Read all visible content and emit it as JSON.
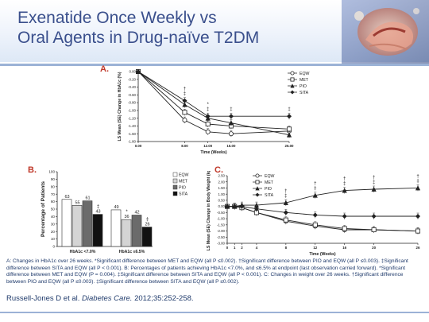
{
  "slide": {
    "title_line1": "Exenatide Once Weekly vs",
    "title_line2": "Oral Agents in Drug-naïve T2DM",
    "caption_a": "A: Changes in HbA1c over 26 weeks. *Significant difference between MET and EQW (all P ≤0.002). †Significant difference between PIO and EQW (all P ≤0.003). ‡Significant difference between SITA and EQW (all P < 0.001).",
    "caption_b": "B: Percentages of patients achieving HbA1c <7.0%, and ≤6.5% at endpoint (last observation carried forward). *Significant difference between MET and EQW (P = 0.004). ‡Significant difference between SITA and EQW (all P < 0.001).",
    "caption_c": "C: Changes in weight over 26 weeks. †Significant difference between PIO and EQW (all P ≤0.003). ‡Significant difference between SITA and EQW (all P ≤0.002).",
    "citation_authors": "Russell-Jones D et al.",
    "citation_journal": "Diabetes Care.",
    "citation_ref": "2012;35:252-258."
  },
  "colors": {
    "title": "#3a4f8c",
    "panel_label": "#c0392b",
    "text": "#1f3a6b"
  },
  "chart_data": [
    {
      "id": "A",
      "panel_label": "A.",
      "type": "line",
      "ylabel": "LS Mean (SE) Change in HbA1c (%)",
      "xlabel": "Time (Weeks)",
      "x": [
        0,
        8,
        12,
        16,
        26
      ],
      "x_ticks": [
        "0.00",
        "8.00",
        "12.00",
        "16.00",
        "26.00"
      ],
      "ylim": [
        -1.8,
        0
      ],
      "y_ticks": [
        "0.00",
        "-0.20",
        "-0.40",
        "-0.60",
        "-0.80",
        "-1.00",
        "-1.20",
        "-1.40",
        "-1.60",
        "-1.80"
      ],
      "legend": "right",
      "series": [
        {
          "name": "EQW",
          "values": [
            0,
            -1.25,
            -1.55,
            -1.6,
            -1.53
          ]
        },
        {
          "name": "MET",
          "values": [
            0,
            -1.05,
            -1.35,
            -1.4,
            -1.48
          ]
        },
        {
          "name": "PIO",
          "values": [
            0,
            -0.85,
            -1.2,
            -1.32,
            -1.63
          ]
        },
        {
          "name": "SITA",
          "values": [
            0,
            -0.75,
            -1.15,
            -1.15,
            -1.15
          ]
        }
      ],
      "annotations": [
        {
          "x": 8,
          "text": "‡"
        },
        {
          "x": 8,
          "text": "†"
        },
        {
          "x": 12,
          "text": "‡"
        },
        {
          "x": 12,
          "text": "*"
        },
        {
          "x": 16,
          "text": "‡"
        },
        {
          "x": 26,
          "text": "‡"
        }
      ]
    },
    {
      "id": "B",
      "panel_label": "B.",
      "type": "bar",
      "ylabel": "Percentage of Patients",
      "categories": [
        "HbA1c <7.0%",
        "HbA1c ≤6.5%"
      ],
      "ylim": [
        0,
        100
      ],
      "y_ticks": [
        "0",
        "10",
        "20",
        "30",
        "40",
        "50",
        "60",
        "70",
        "80",
        "90",
        "100"
      ],
      "legend": "right",
      "series": [
        {
          "name": "EQW",
          "values": [
            63,
            49
          ]
        },
        {
          "name": "MET",
          "values": [
            55,
            36
          ]
        },
        {
          "name": "PIO",
          "values": [
            61,
            42
          ]
        },
        {
          "name": "SITA",
          "values": [
            43,
            26
          ]
        }
      ],
      "annotations": [
        {
          "category": 0,
          "series": "SITA",
          "text": "‡"
        },
        {
          "category": 1,
          "series": "MET",
          "text": "*"
        },
        {
          "category": 1,
          "series": "SITA",
          "text": "‡"
        }
      ]
    },
    {
      "id": "C",
      "panel_label": "C.",
      "type": "line",
      "ylabel": "LS Mean (SE) Change in Body Weight (kg)",
      "xlabel": "Time (Weeks)",
      "x": [
        0,
        1,
        2,
        4,
        8,
        12,
        16,
        20,
        26
      ],
      "x_ticks": [
        "0",
        "1",
        "2",
        "4",
        "8",
        "12",
        "16",
        "20",
        "26"
      ],
      "ylim": [
        -3.0,
        2.5
      ],
      "y_ticks": [
        "2.50",
        "2.00",
        "1.50",
        "1.00",
        "0.50",
        "0.00",
        "-0.50",
        "-1.00",
        "-1.50",
        "-2.00",
        "-2.50",
        "-3.00"
      ],
      "legend": "top-left",
      "series": [
        {
          "name": "EQW",
          "values": [
            0,
            0,
            -0.1,
            -0.5,
            -1.2,
            -1.6,
            -1.9,
            -1.9,
            -2.0
          ]
        },
        {
          "name": "MET",
          "values": [
            0,
            0,
            -0.1,
            -0.5,
            -1.1,
            -1.5,
            -1.8,
            -1.9,
            -2.0
          ]
        },
        {
          "name": "PIO",
          "values": [
            0,
            0,
            0.1,
            0.1,
            0.3,
            0.9,
            1.3,
            1.4,
            1.5
          ]
        },
        {
          "name": "SITA",
          "values": [
            0,
            0,
            0,
            -0.2,
            -0.5,
            -0.7,
            -0.8,
            -0.8,
            -0.8
          ]
        }
      ],
      "annotations": [
        {
          "x": 8,
          "text": "‡"
        },
        {
          "x": 8,
          "text": "†"
        },
        {
          "x": 12,
          "text": "‡"
        },
        {
          "x": 12,
          "text": "†"
        },
        {
          "x": 16,
          "text": "‡"
        },
        {
          "x": 16,
          "text": "†"
        },
        {
          "x": 20,
          "text": "‡"
        },
        {
          "x": 20,
          "text": "†"
        },
        {
          "x": 26,
          "text": "‡"
        },
        {
          "x": 26,
          "text": "†"
        }
      ]
    }
  ]
}
